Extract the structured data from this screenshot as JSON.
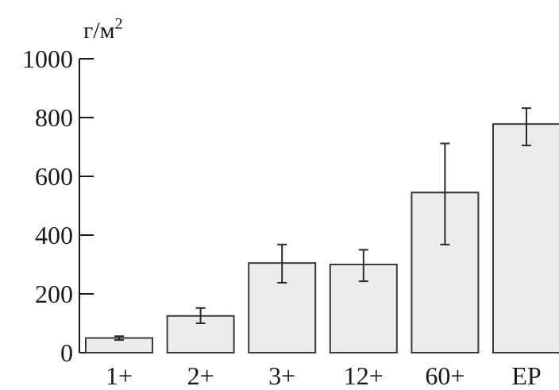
{
  "chart_data": {
    "type": "bar",
    "categories": [
      "1+",
      "2+",
      "3+",
      "12+",
      "60+",
      "EP"
    ],
    "values": [
      50,
      125,
      305,
      300,
      545,
      778
    ],
    "error": [
      [
        43,
        56
      ],
      [
        100,
        152
      ],
      [
        238,
        368
      ],
      [
        243,
        350
      ],
      [
        368,
        712
      ],
      [
        705,
        832
      ]
    ],
    "ylabel": "г/м",
    "ylabel_superscript": "2",
    "ylim": [
      0,
      1000
    ],
    "yticks": [
      0,
      200,
      400,
      600,
      800,
      1000
    ],
    "grid": false,
    "colors": {
      "bar_fill": "#ececec",
      "bar_stroke": "#3a3a3a",
      "axis": "#1a1a1a"
    }
  }
}
